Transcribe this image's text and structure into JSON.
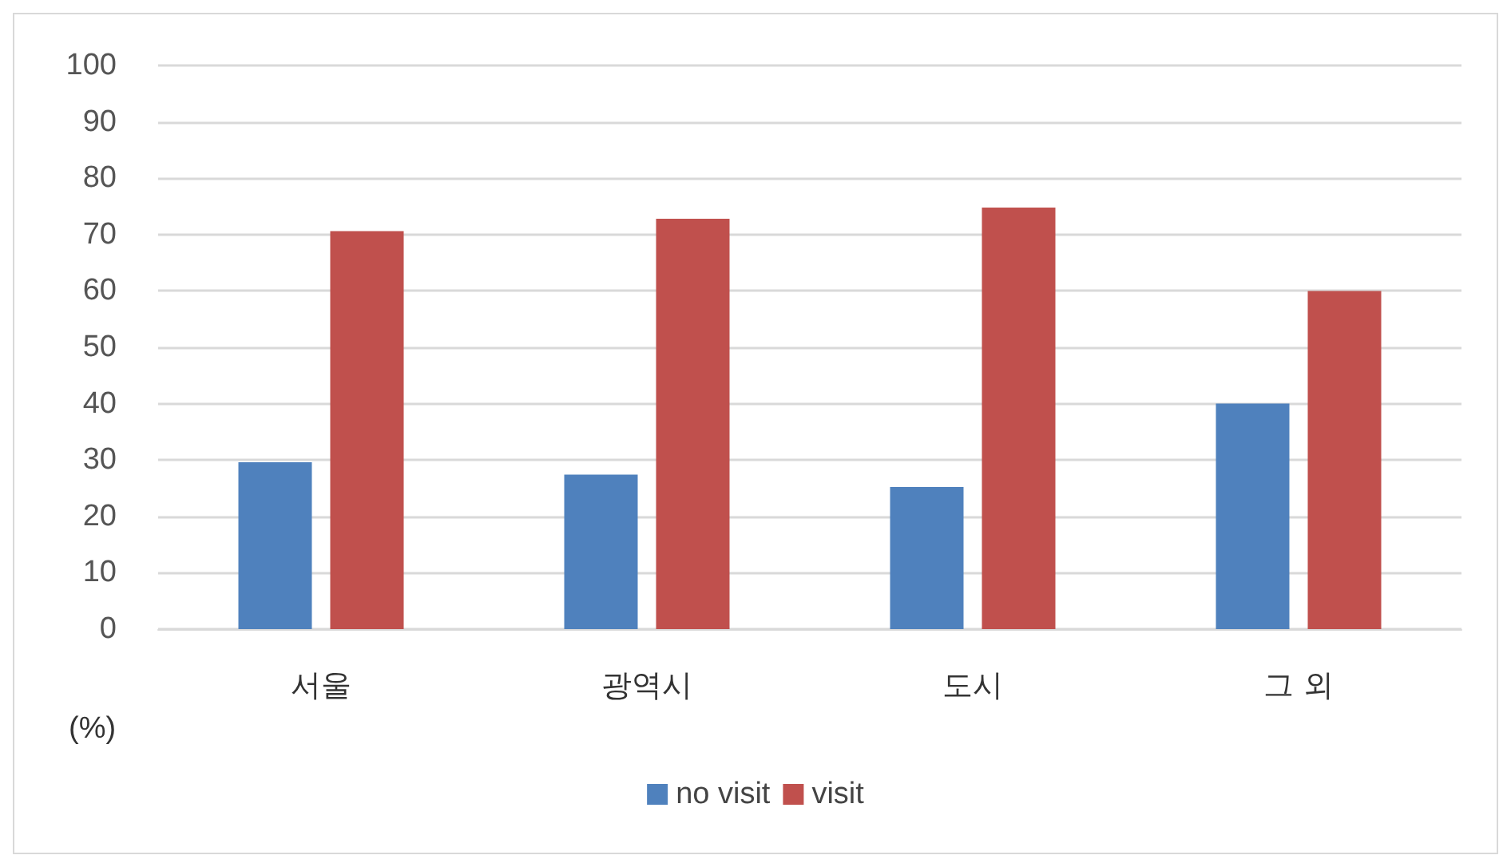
{
  "chart_data": {
    "type": "bar",
    "ylabel": "(%)",
    "categories": [
      "서울",
      "광역시",
      "도시",
      "그 외"
    ],
    "series": [
      {
        "name": "no visit",
        "color": "#4f81bd",
        "values": [
          29.6,
          27.4,
          25.2,
          40
        ]
      },
      {
        "name": "visit",
        "color": "#c0504d",
        "values": [
          70.6,
          72.8,
          74.8,
          60
        ]
      }
    ],
    "ylim": [
      0,
      100
    ],
    "yticks": [
      0,
      10,
      20,
      30,
      40,
      50,
      60,
      70,
      80,
      90,
      100
    ],
    "grid": "y",
    "legend": "bottom"
  }
}
